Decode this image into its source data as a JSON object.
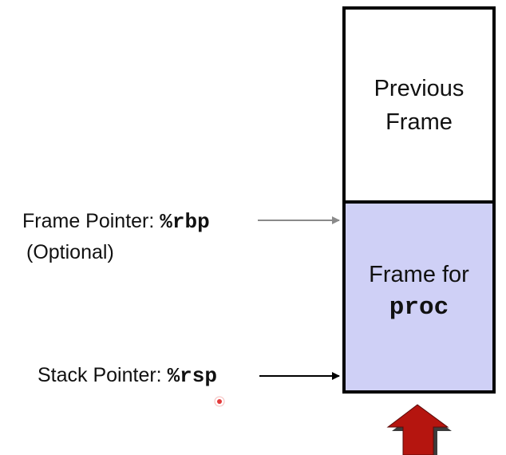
{
  "stack": {
    "previous_frame": [
      "Previous",
      "Frame"
    ],
    "current_frame": {
      "line1": "Frame for",
      "line2": "proc"
    }
  },
  "labels": {
    "frame_pointer": {
      "text": "Frame Pointer: ",
      "register": "%rbp",
      "note": "(Optional)"
    },
    "stack_pointer": {
      "text": "Stack Pointer: ",
      "register": "%rsp"
    }
  },
  "colors": {
    "current_frame_fill": "#cfd0f6",
    "up_arrow": "#b5150f",
    "up_arrow_shadow": "#3c3c3c",
    "rbp_arrow": "#8a8a8a",
    "rsp_arrow": "#000000",
    "cursor_dot": "#e23b3b"
  },
  "icons": {
    "stack_growth": "up-arrow-icon"
  }
}
